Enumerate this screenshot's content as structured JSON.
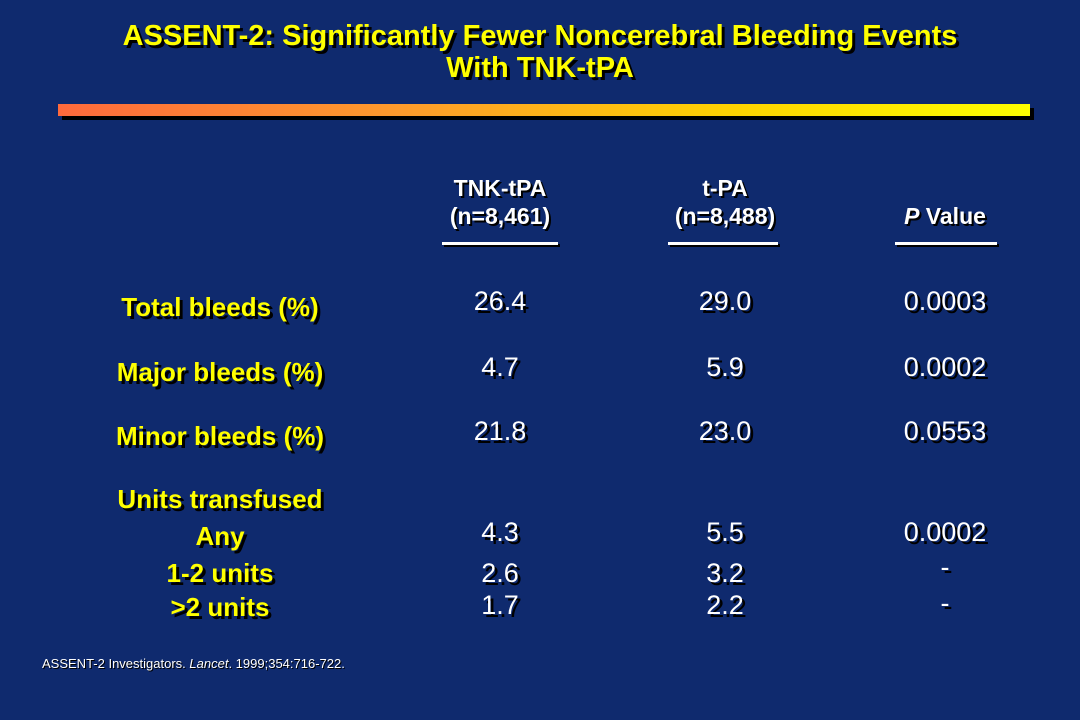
{
  "title": {
    "line1": "ASSENT-2: Significantly Fewer Noncerebral Bleeding Events",
    "line2": "With TNK-tPA"
  },
  "colors": {
    "background": "#0f2a6e",
    "title": "#ffff00",
    "label": "#ffff00",
    "value": "#ffffff",
    "bar_start": "#ff6a3c",
    "bar_end": "#ffff00"
  },
  "columns": [
    {
      "line1": "TNK-tPA",
      "line2": "(n=8,461)"
    },
    {
      "line1": "t-PA",
      "line2": "(n=8,488)"
    },
    {
      "line1_italic": "P",
      "line1_rest": " Value"
    }
  ],
  "rows": {
    "total": {
      "label": "Total bleeds (%)",
      "tnk": "26.4",
      "tpa": "29.0",
      "p": "0.0003"
    },
    "major": {
      "label": "Major bleeds (%)",
      "tnk": "4.7",
      "tpa": "5.9",
      "p": "0.0002"
    },
    "minor": {
      "label": "Minor bleeds (%)",
      "tnk": "21.8",
      "tpa": "23.0",
      "p": "0.0553"
    },
    "units_header": {
      "label": "Units transfused"
    },
    "any": {
      "label": "Any",
      "tnk": "4.3",
      "tpa": "5.5",
      "p": "0.0002"
    },
    "one_two": {
      "label": "1-2 units",
      "tnk": "2.6",
      "tpa": "3.2",
      "p": "-"
    },
    "gt_two": {
      "label": ">2 units",
      "tnk": "1.7",
      "tpa": "2.2",
      "p": "-"
    }
  },
  "citation": {
    "authors": "ASSENT-2 Investigators. ",
    "journal": "Lancet",
    "rest": ". 1999;354:716-722."
  }
}
